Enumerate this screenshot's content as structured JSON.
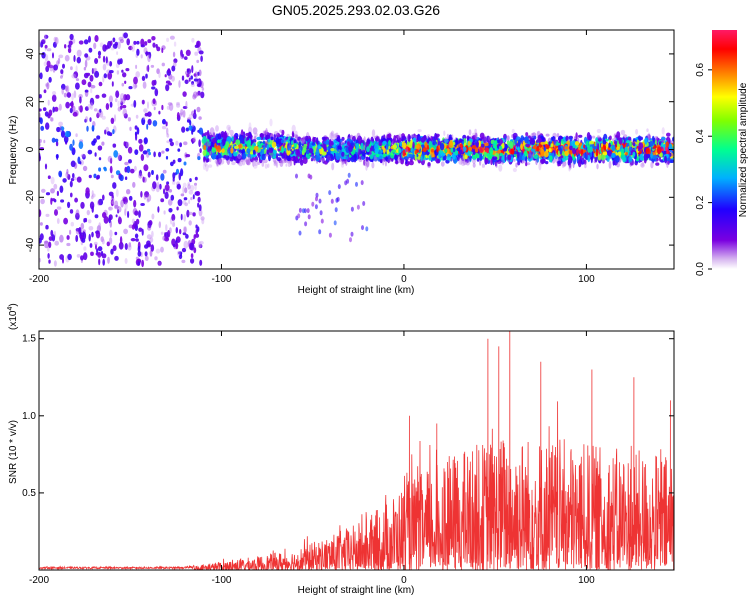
{
  "title": "GN05.2025.293.02.03.G26",
  "chart_data": [
    {
      "type": "heatmap",
      "title": "GN05.2025.293.02.03.G26",
      "xlabel": "Height of straight line (km)",
      "ylabel": "Frequency (Hz)",
      "xlim": [
        -200,
        148
      ],
      "ylim": [
        -50,
        50
      ],
      "x_ticks": [
        "-200",
        "-100",
        "0",
        "100"
      ],
      "y_ticks": [
        "40",
        "20",
        "0",
        "-20",
        "-40"
      ],
      "colorbar": {
        "label": "Normalized spectral amplitude",
        "range": [
          0.0,
          0.72
        ],
        "ticks": [
          "0.0",
          "0.2",
          "0.4",
          "0.6"
        ],
        "colormap": "rainbow",
        "colors": [
          "#ffffff",
          "#7a00e0",
          "#2000ff",
          "#00c0ff",
          "#00ff80",
          "#ffff00",
          "#ff8000",
          "#ff0000",
          "#ff1a66"
        ]
      },
      "bands": [
        {
          "x_range": [
            -200,
            -110
          ],
          "center_hz": 0,
          "halfwidth_hz": 48,
          "amplitude": 0.08
        },
        {
          "x_range": [
            -110,
            -60
          ],
          "center_hz": 1,
          "halfwidth_hz": 10,
          "amplitude": 0.35
        },
        {
          "x_range": [
            -60,
            0
          ],
          "center_hz": 0,
          "halfwidth_hz": 8,
          "amplitude": 0.3
        },
        {
          "x_range": [
            0,
            148
          ],
          "center_hz": 0,
          "halfwidth_hz": 8,
          "amplitude": 0.45
        }
      ]
    },
    {
      "type": "line",
      "xlabel": "Height of straight line (km)",
      "ylabel": "SNR (10 * v/v)",
      "y_scale_label": "(x10",
      "y_scale_exponent": "4",
      "y_scale_suffix": ")",
      "xlim": [
        -200,
        148
      ],
      "ylim": [
        0,
        1.55
      ],
      "x_ticks": [
        "-200",
        "-100",
        "0",
        "100"
      ],
      "y_ticks": [
        "0.5",
        "1.0",
        "1.5"
      ],
      "line_color": "#ee3333",
      "envelope": {
        "x": [
          -200,
          -120,
          -110,
          -80,
          -60,
          -40,
          -20,
          0,
          20,
          40,
          60,
          80,
          100,
          120,
          148
        ],
        "y": [
          0.02,
          0.02,
          0.05,
          0.12,
          0.18,
          0.3,
          0.45,
          0.75,
          0.95,
          1.1,
          1.2,
          1.15,
          1.1,
          1.05,
          1.0
        ]
      },
      "peaks": [
        {
          "x": 3,
          "y": 1.0
        },
        {
          "x": 18,
          "y": 0.95
        },
        {
          "x": 46,
          "y": 1.5
        },
        {
          "x": 52,
          "y": 1.45
        },
        {
          "x": 58,
          "y": 1.55
        },
        {
          "x": 75,
          "y": 1.35
        },
        {
          "x": 103,
          "y": 1.3
        },
        {
          "x": 126,
          "y": 1.25
        },
        {
          "x": 146,
          "y": 1.1
        }
      ]
    }
  ]
}
